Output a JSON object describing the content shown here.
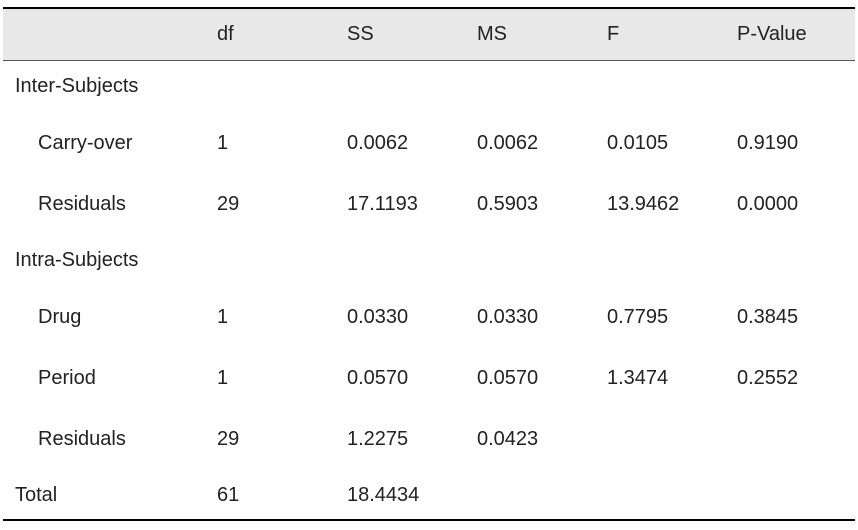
{
  "table": {
    "columns": [
      "df",
      "SS",
      "MS",
      "F",
      "P-Value"
    ],
    "groups": [
      {
        "label": "Inter-Subjects",
        "rows": [
          {
            "label": "Carry-over",
            "cells": [
              "1",
              "0.0062",
              "0.0062",
              "0.0105",
              "0.9190"
            ]
          },
          {
            "label": "Residuals",
            "cells": [
              "29",
              "17.1193",
              "0.5903",
              "13.9462",
              "0.0000"
            ]
          }
        ]
      },
      {
        "label": "Intra-Subjects",
        "rows": [
          {
            "label": "Drug",
            "cells": [
              "1",
              "0.0330",
              "0.0330",
              "0.7795",
              "0.3845"
            ]
          },
          {
            "label": "Period",
            "cells": [
              "1",
              "0.0570",
              "0.0570",
              "1.3474",
              "0.2552"
            ]
          },
          {
            "label": "Residuals",
            "cells": [
              "29",
              "1.2275",
              "0.0423"
            ]
          }
        ]
      }
    ],
    "total": {
      "label": "Total",
      "cells": [
        "61",
        "18.4434"
      ]
    }
  }
}
